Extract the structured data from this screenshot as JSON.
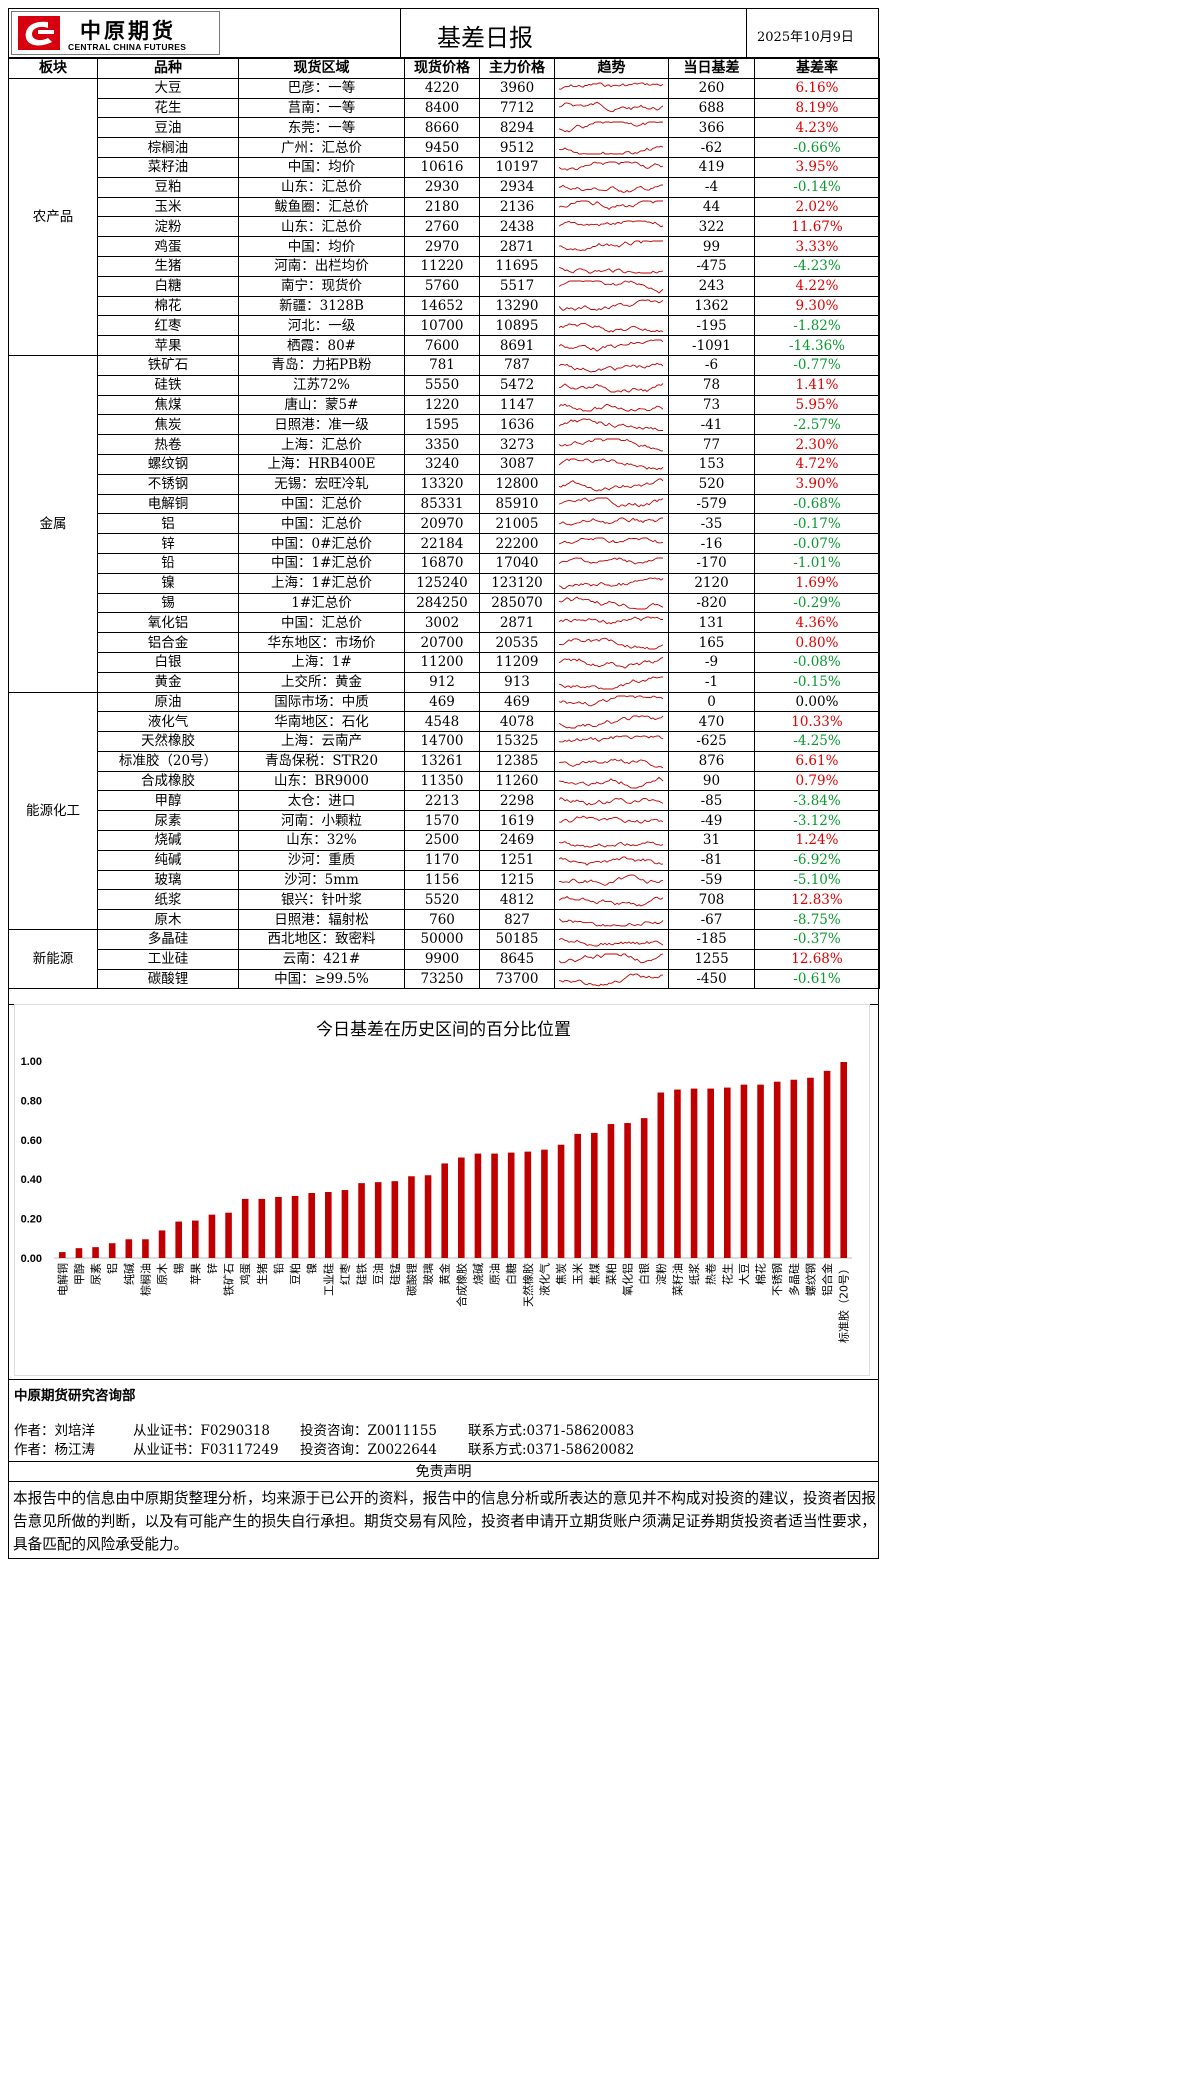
{
  "header": {
    "logo_cn": "中原期货",
    "logo_en": "CENTRAL CHINA FUTURES",
    "title": "基差日报",
    "date": "2025年10月9日"
  },
  "colors": {
    "positive": "#e00000",
    "negative": "#0a9a30",
    "bar": "#c00000",
    "brand": "#d7000f"
  },
  "table": {
    "columns": [
      "板块",
      "品种",
      "现货区域",
      "现货价格",
      "主力价格",
      "趋势",
      "当日基差",
      "基差率"
    ],
    "sectors": [
      {
        "name": "农产品",
        "rows": [
          {
            "product": "大豆",
            "region": "巴彦：一等",
            "spot": "4220",
            "main": "3960",
            "basis": "260",
            "rate": "6.16%",
            "sign": "pos"
          },
          {
            "product": "花生",
            "region": "莒南：一等",
            "spot": "8400",
            "main": "7712",
            "basis": "688",
            "rate": "8.19%",
            "sign": "pos"
          },
          {
            "product": "豆油",
            "region": "东莞：一等",
            "spot": "8660",
            "main": "8294",
            "basis": "366",
            "rate": "4.23%",
            "sign": "pos"
          },
          {
            "product": "棕榈油",
            "region": "广州：汇总价",
            "spot": "9450",
            "main": "9512",
            "basis": "-62",
            "rate": "-0.66%",
            "sign": "neg"
          },
          {
            "product": "菜籽油",
            "region": "中国：均价",
            "spot": "10616",
            "main": "10197",
            "basis": "419",
            "rate": "3.95%",
            "sign": "pos"
          },
          {
            "product": "豆粕",
            "region": "山东：汇总价",
            "spot": "2930",
            "main": "2934",
            "basis": "-4",
            "rate": "-0.14%",
            "sign": "neg"
          },
          {
            "product": "玉米",
            "region": "鲅鱼圈：汇总价",
            "spot": "2180",
            "main": "2136",
            "basis": "44",
            "rate": "2.02%",
            "sign": "pos"
          },
          {
            "product": "淀粉",
            "region": "山东：汇总价",
            "spot": "2760",
            "main": "2438",
            "basis": "322",
            "rate": "11.67%",
            "sign": "pos"
          },
          {
            "product": "鸡蛋",
            "region": "中国：均价",
            "spot": "2970",
            "main": "2871",
            "basis": "99",
            "rate": "3.33%",
            "sign": "pos"
          },
          {
            "product": "生猪",
            "region": "河南：出栏均价",
            "spot": "11220",
            "main": "11695",
            "basis": "-475",
            "rate": "-4.23%",
            "sign": "neg"
          },
          {
            "product": "白糖",
            "region": "南宁：现货价",
            "spot": "5760",
            "main": "5517",
            "basis": "243",
            "rate": "4.22%",
            "sign": "pos"
          },
          {
            "product": "棉花",
            "region": "新疆：3128B",
            "spot": "14652",
            "main": "13290",
            "basis": "1362",
            "rate": "9.30%",
            "sign": "pos"
          },
          {
            "product": "红枣",
            "region": "河北：一级",
            "spot": "10700",
            "main": "10895",
            "basis": "-195",
            "rate": "-1.82%",
            "sign": "neg"
          },
          {
            "product": "苹果",
            "region": "栖霞：80#",
            "spot": "7600",
            "main": "8691",
            "basis": "-1091",
            "rate": "-14.36%",
            "sign": "neg"
          }
        ]
      },
      {
        "name": "金属",
        "rows": [
          {
            "product": "铁矿石",
            "region": "青岛：力拓PB粉",
            "spot": "781",
            "main": "787",
            "basis": "-6",
            "rate": "-0.77%",
            "sign": "neg"
          },
          {
            "product": "硅铁",
            "region": "江苏72%",
            "spot": "5550",
            "main": "5472",
            "basis": "78",
            "rate": "1.41%",
            "sign": "pos"
          },
          {
            "product": "焦煤",
            "region": "唐山：蒙5#",
            "spot": "1220",
            "main": "1147",
            "basis": "73",
            "rate": "5.95%",
            "sign": "pos"
          },
          {
            "product": "焦炭",
            "region": "日照港：准一级",
            "spot": "1595",
            "main": "1636",
            "basis": "-41",
            "rate": "-2.57%",
            "sign": "neg"
          },
          {
            "product": "热卷",
            "region": "上海：汇总价",
            "spot": "3350",
            "main": "3273",
            "basis": "77",
            "rate": "2.30%",
            "sign": "pos"
          },
          {
            "product": "螺纹钢",
            "region": "上海：HRB400E",
            "spot": "3240",
            "main": "3087",
            "basis": "153",
            "rate": "4.72%",
            "sign": "pos"
          },
          {
            "product": "不锈钢",
            "region": "无锡：宏旺冷轧",
            "spot": "13320",
            "main": "12800",
            "basis": "520",
            "rate": "3.90%",
            "sign": "pos"
          },
          {
            "product": "电解铜",
            "region": "中国：汇总价",
            "spot": "85331",
            "main": "85910",
            "basis": "-579",
            "rate": "-0.68%",
            "sign": "neg"
          },
          {
            "product": "铝",
            "region": "中国：汇总价",
            "spot": "20970",
            "main": "21005",
            "basis": "-35",
            "rate": "-0.17%",
            "sign": "neg"
          },
          {
            "product": "锌",
            "region": "中国：0#汇总价",
            "spot": "22184",
            "main": "22200",
            "basis": "-16",
            "rate": "-0.07%",
            "sign": "neg"
          },
          {
            "product": "铅",
            "region": "中国：1#汇总价",
            "spot": "16870",
            "main": "17040",
            "basis": "-170",
            "rate": "-1.01%",
            "sign": "neg"
          },
          {
            "product": "镍",
            "region": "上海：1#汇总价",
            "spot": "125240",
            "main": "123120",
            "basis": "2120",
            "rate": "1.69%",
            "sign": "pos"
          },
          {
            "product": "锡",
            "region": "1#汇总价",
            "spot": "284250",
            "main": "285070",
            "basis": "-820",
            "rate": "-0.29%",
            "sign": "neg"
          },
          {
            "product": "氧化铝",
            "region": "中国：汇总价",
            "spot": "3002",
            "main": "2871",
            "basis": "131",
            "rate": "4.36%",
            "sign": "pos"
          },
          {
            "product": "铝合金",
            "region": "华东地区：市场价",
            "spot": "20700",
            "main": "20535",
            "basis": "165",
            "rate": "0.80%",
            "sign": "pos"
          },
          {
            "product": "白银",
            "region": "上海：1#",
            "spot": "11200",
            "main": "11209",
            "basis": "-9",
            "rate": "-0.08%",
            "sign": "neg"
          },
          {
            "product": "黄金",
            "region": "上交所：黄金",
            "spot": "912",
            "main": "913",
            "basis": "-1",
            "rate": "-0.15%",
            "sign": "neg"
          }
        ]
      },
      {
        "name": "能源化工",
        "rows": [
          {
            "product": "原油",
            "region": "国际市场：中质",
            "spot": "469",
            "main": "469",
            "basis": "0",
            "rate": "0.00%",
            "sign": "zero"
          },
          {
            "product": "液化气",
            "region": "华南地区：石化",
            "spot": "4548",
            "main": "4078",
            "basis": "470",
            "rate": "10.33%",
            "sign": "pos"
          },
          {
            "product": "天然橡胶",
            "region": "上海：云南产",
            "spot": "14700",
            "main": "15325",
            "basis": "-625",
            "rate": "-4.25%",
            "sign": "neg"
          },
          {
            "product": "标准胶（20号）",
            "region": "青岛保税：STR20",
            "spot": "13261",
            "main": "12385",
            "basis": "876",
            "rate": "6.61%",
            "sign": "pos"
          },
          {
            "product": "合成橡胶",
            "region": "山东：BR9000",
            "spot": "11350",
            "main": "11260",
            "basis": "90",
            "rate": "0.79%",
            "sign": "pos"
          },
          {
            "product": "甲醇",
            "region": "太仓：进口",
            "spot": "2213",
            "main": "2298",
            "basis": "-85",
            "rate": "-3.84%",
            "sign": "neg"
          },
          {
            "product": "尿素",
            "region": "河南：小颗粒",
            "spot": "1570",
            "main": "1619",
            "basis": "-49",
            "rate": "-3.12%",
            "sign": "neg"
          },
          {
            "product": "烧碱",
            "region": "山东：32%",
            "spot": "2500",
            "main": "2469",
            "basis": "31",
            "rate": "1.24%",
            "sign": "pos"
          },
          {
            "product": "纯碱",
            "region": "沙河：重质",
            "spot": "1170",
            "main": "1251",
            "basis": "-81",
            "rate": "-6.92%",
            "sign": "neg"
          },
          {
            "product": "玻璃",
            "region": "沙河：5mm",
            "spot": "1156",
            "main": "1215",
            "basis": "-59",
            "rate": "-5.10%",
            "sign": "neg"
          },
          {
            "product": "纸浆",
            "region": "银兴：针叶浆",
            "spot": "5520",
            "main": "4812",
            "basis": "708",
            "rate": "12.83%",
            "sign": "pos"
          },
          {
            "product": "原木",
            "region": "日照港：辐射松",
            "spot": "760",
            "main": "827",
            "basis": "-67",
            "rate": "-8.75%",
            "sign": "neg"
          }
        ]
      },
      {
        "name": "新能源",
        "rows": [
          {
            "product": "多晶硅",
            "region": "西北地区：致密料",
            "spot": "50000",
            "main": "50185",
            "basis": "-185",
            "rate": "-0.37%",
            "sign": "neg"
          },
          {
            "product": "工业硅",
            "region": "云南：421#",
            "spot": "9900",
            "main": "8645",
            "basis": "1255",
            "rate": "12.68%",
            "sign": "pos"
          },
          {
            "product": "碳酸锂",
            "region": "中国：≥99.5%",
            "spot": "73250",
            "main": "73700",
            "basis": "-450",
            "rate": "-0.61%",
            "sign": "neg"
          }
        ]
      }
    ]
  },
  "chart_data": {
    "type": "bar",
    "title": "今日基差在历史区间的百分比位置",
    "ylim": [
      0,
      1
    ],
    "yticks": [
      "0.00",
      "0.20",
      "0.40",
      "0.60",
      "0.80",
      "1.00"
    ],
    "categories": [
      "电解铜",
      "甲醇",
      "尿素",
      "铝",
      "纯碱",
      "棕榈油",
      "原木",
      "锡",
      "苹果",
      "锌",
      "铁矿石",
      "鸡蛋",
      "生猪",
      "铅",
      "豆粕",
      "镍",
      "工业硅",
      "红枣",
      "硅铁",
      "豆油",
      "硅锰",
      "碳酸锂",
      "玻璃",
      "黄金",
      "合成橡胶",
      "烧碱",
      "原油",
      "白糖",
      "天然橡胶",
      "液化气",
      "焦炭",
      "玉米",
      "焦煤",
      "菜粕",
      "氧化铝",
      "白银",
      "淀粉",
      "菜籽油",
      "纸浆",
      "热卷",
      "花生",
      "大豆",
      "棉花",
      "不锈钢",
      "多晶硅",
      "螺纹钢",
      "铝合金",
      "标准胶（20号）"
    ],
    "values": [
      0.03,
      0.05,
      0.055,
      0.075,
      0.095,
      0.095,
      0.14,
      0.185,
      0.19,
      0.22,
      0.23,
      0.3,
      0.3,
      0.31,
      0.315,
      0.33,
      0.335,
      0.345,
      0.38,
      0.385,
      0.39,
      0.415,
      0.42,
      0.48,
      0.51,
      0.53,
      0.53,
      0.535,
      0.54,
      0.55,
      0.575,
      0.63,
      0.635,
      0.68,
      0.685,
      0.71,
      0.84,
      0.855,
      0.86,
      0.86,
      0.865,
      0.88,
      0.88,
      0.895,
      0.905,
      0.915,
      0.95,
      0.995
    ]
  },
  "footer": {
    "dept": "中原期货研究咨询部",
    "authors": [
      {
        "name": "作者：刘培洋",
        "cert": "从业证书：F0290318",
        "advisory": "投资咨询：Z0011155",
        "contact": "联系方式:0371-58620083"
      },
      {
        "name": "作者：杨江涛",
        "cert": "从业证书：F03117249",
        "advisory": "投资咨询：Z0022644",
        "contact": "联系方式:0371-58620082"
      }
    ],
    "disclaimer_title": "免责声明",
    "disclaimer_text": "本报告中的信息由中原期货整理分析，均来源于已公开的资料，报告中的信息分析或所表达的意见并不构成对投资的建议，投资者因报告意见所做的判断，以及有可能产生的损失自行承担。期货交易有风险，投资者申请开立期货账户须满足证券期货投资者适当性要求，具备匹配的风险承受能力。"
  }
}
